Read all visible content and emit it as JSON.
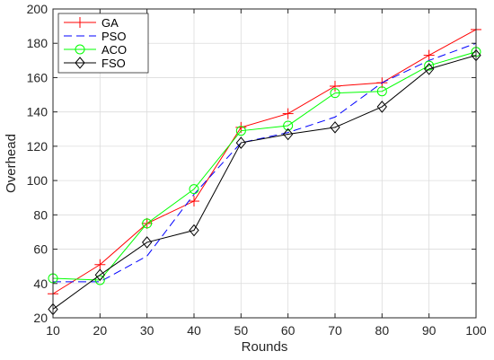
{
  "chart_data": {
    "type": "line",
    "title": "",
    "xlabel": "Rounds",
    "ylabel": "Overhead",
    "x": [
      10,
      20,
      30,
      40,
      50,
      60,
      70,
      80,
      90,
      100
    ],
    "xlim": [
      10,
      100
    ],
    "ylim": [
      20,
      200
    ],
    "xticks": [
      "10",
      "20",
      "30",
      "40",
      "50",
      "60",
      "70",
      "80",
      "90",
      "100"
    ],
    "yticks": [
      "20",
      "40",
      "60",
      "80",
      "100",
      "120",
      "140",
      "160",
      "180",
      "200"
    ],
    "grid": true,
    "legend_position": "top-left",
    "series": [
      {
        "name": "GA",
        "color": "#ff0000",
        "dash": "solid",
        "marker": "plus",
        "values": [
          34,
          51,
          75,
          88,
          131,
          139,
          155,
          157,
          173,
          188
        ]
      },
      {
        "name": "PSO",
        "color": "#0000ff",
        "dash": "dashed",
        "marker": "none",
        "values": [
          41,
          41,
          56,
          92,
          122,
          128,
          137,
          157,
          170,
          180
        ]
      },
      {
        "name": "ACO",
        "color": "#00ff00",
        "dash": "solid",
        "marker": "circle",
        "values": [
          43,
          42,
          75,
          95,
          129,
          132,
          151,
          152,
          167,
          175
        ]
      },
      {
        "name": "FSO",
        "color": "#000000",
        "dash": "solid",
        "marker": "diamond",
        "values": [
          25,
          45,
          64,
          71,
          122,
          127,
          131,
          143,
          165,
          173
        ]
      }
    ]
  }
}
